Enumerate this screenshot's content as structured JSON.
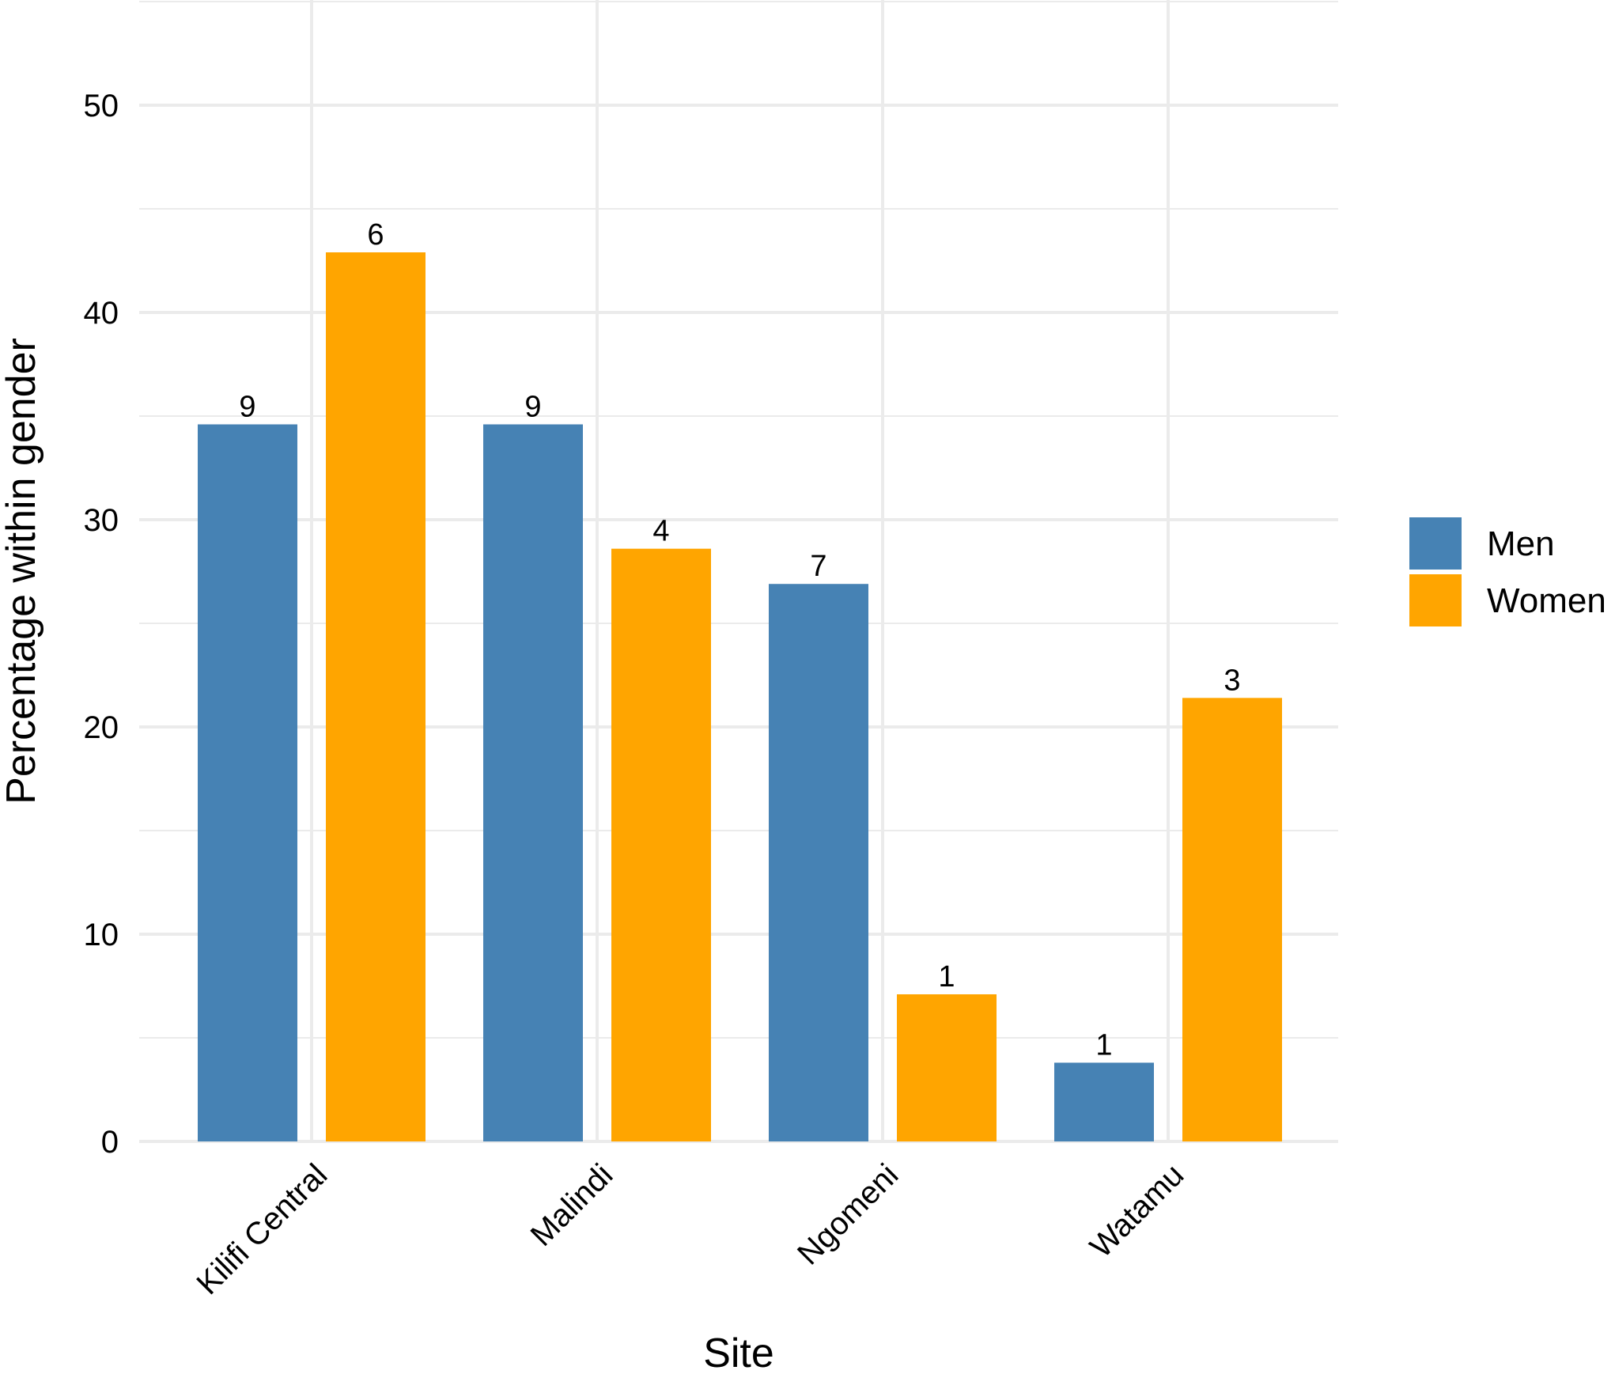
{
  "chart_data": {
    "type": "bar",
    "xlabel": "Site",
    "ylabel": "Percentage within gender",
    "ylim": [
      0,
      55
    ],
    "yticks": [
      0,
      10,
      20,
      30,
      40,
      50
    ],
    "grid": true,
    "legend_position": "right",
    "categories": [
      "Kilifi Central",
      "Malindi",
      "Ngomeni",
      "Watamu"
    ],
    "series": [
      {
        "name": "Men",
        "color": "#4682B4",
        "values": [
          34.6,
          34.6,
          26.9,
          3.8
        ],
        "labels": [
          "9",
          "9",
          "7",
          "1"
        ]
      },
      {
        "name": "Women",
        "color": "#FFA500",
        "values": [
          42.9,
          28.6,
          7.1,
          21.4
        ],
        "labels": [
          "6",
          "4",
          "1",
          "3"
        ]
      }
    ]
  }
}
